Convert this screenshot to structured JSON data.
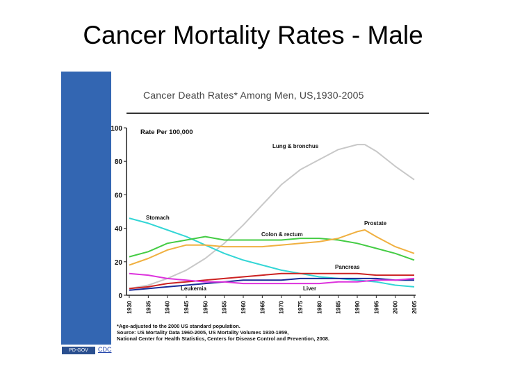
{
  "slide": {
    "title": "Cancer Mortality Rates - Male"
  },
  "footnote": {
    "lines": [
      "*Age-adjusted to the 2000 US standard population.",
      "Source: US Mortality Data 1960-2005, US Mortality Volumes 1930-1959,",
      "National Center for Health Statistics, Centers for Disease Control and Prevention, 2008."
    ]
  },
  "badge": {
    "label": "PD-GOV"
  },
  "credit": {
    "label": "CDC"
  },
  "chart_data": {
    "type": "line",
    "title": "Cancer Death Rates* Among Men, US,1930-2005",
    "ylabel": "Rate Per 100,000",
    "xlabel": "",
    "ylim": [
      0,
      100
    ],
    "yticks": [
      0,
      20,
      40,
      60,
      80,
      100
    ],
    "xlim": [
      1930,
      2005
    ],
    "xticks": [
      "1930",
      "1935",
      "1940",
      "1945",
      "1950",
      "1955",
      "1960",
      "1965",
      "1970",
      "1975",
      "1980",
      "1985",
      "1990",
      "1995",
      "2000",
      "2005"
    ],
    "grid": false,
    "legend": "inline labels",
    "series": [
      {
        "name": "Lung & bronchus",
        "color": "#c8c8c8",
        "points": [
          [
            1930,
            4
          ],
          [
            1935,
            6
          ],
          [
            1940,
            10
          ],
          [
            1945,
            15
          ],
          [
            1950,
            22
          ],
          [
            1955,
            31
          ],
          [
            1960,
            42
          ],
          [
            1965,
            54
          ],
          [
            1970,
            66
          ],
          [
            1975,
            75
          ],
          [
            1980,
            81
          ],
          [
            1985,
            87
          ],
          [
            1990,
            90
          ],
          [
            1992,
            90
          ],
          [
            1995,
            86
          ],
          [
            2000,
            77
          ],
          [
            2005,
            69
          ]
        ]
      },
      {
        "name": "Stomach",
        "color": "#33d6d6",
        "points": [
          [
            1930,
            46
          ],
          [
            1935,
            43
          ],
          [
            1940,
            39
          ],
          [
            1945,
            35
          ],
          [
            1950,
            30
          ],
          [
            1955,
            25
          ],
          [
            1960,
            21
          ],
          [
            1965,
            18
          ],
          [
            1970,
            15
          ],
          [
            1975,
            13
          ],
          [
            1980,
            11
          ],
          [
            1985,
            10
          ],
          [
            1990,
            9
          ],
          [
            1995,
            8
          ],
          [
            2000,
            6
          ],
          [
            2005,
            5
          ]
        ]
      },
      {
        "name": "Colon & rectum",
        "color": "#44cc44",
        "points": [
          [
            1930,
            23
          ],
          [
            1935,
            26
          ],
          [
            1940,
            31
          ],
          [
            1945,
            33
          ],
          [
            1950,
            35
          ],
          [
            1955,
            33
          ],
          [
            1960,
            33
          ],
          [
            1965,
            33
          ],
          [
            1970,
            33
          ],
          [
            1975,
            34
          ],
          [
            1980,
            34
          ],
          [
            1985,
            33
          ],
          [
            1990,
            31
          ],
          [
            1995,
            28
          ],
          [
            2000,
            25
          ],
          [
            2005,
            21
          ]
        ]
      },
      {
        "name": "Prostate",
        "color": "#f0b040",
        "points": [
          [
            1930,
            18
          ],
          [
            1935,
            22
          ],
          [
            1940,
            27
          ],
          [
            1945,
            30
          ],
          [
            1950,
            30
          ],
          [
            1955,
            29
          ],
          [
            1960,
            29
          ],
          [
            1965,
            29
          ],
          [
            1970,
            30
          ],
          [
            1975,
            31
          ],
          [
            1980,
            32
          ],
          [
            1985,
            34
          ],
          [
            1990,
            38
          ],
          [
            1992,
            39
          ],
          [
            1995,
            35
          ],
          [
            2000,
            29
          ],
          [
            2005,
            25
          ]
        ]
      },
      {
        "name": "Pancreas",
        "color": "#cc2222",
        "points": [
          [
            1930,
            4
          ],
          [
            1935,
            5
          ],
          [
            1940,
            7
          ],
          [
            1945,
            8
          ],
          [
            1950,
            9
          ],
          [
            1955,
            10
          ],
          [
            1960,
            11
          ],
          [
            1965,
            12
          ],
          [
            1970,
            13
          ],
          [
            1975,
            13
          ],
          [
            1980,
            13
          ],
          [
            1985,
            13
          ],
          [
            1990,
            13
          ],
          [
            1995,
            12
          ],
          [
            2000,
            12
          ],
          [
            2005,
            12
          ]
        ]
      },
      {
        "name": "Leukemia",
        "color": "#1a2a99",
        "points": [
          [
            1930,
            3
          ],
          [
            1935,
            4
          ],
          [
            1940,
            5
          ],
          [
            1945,
            6
          ],
          [
            1950,
            7
          ],
          [
            1955,
            8
          ],
          [
            1960,
            9
          ],
          [
            1965,
            9
          ],
          [
            1970,
            9
          ],
          [
            1975,
            10
          ],
          [
            1980,
            10
          ],
          [
            1985,
            10
          ],
          [
            1990,
            10
          ],
          [
            1995,
            10
          ],
          [
            2000,
            9
          ],
          [
            2005,
            9
          ]
        ]
      },
      {
        "name": "Liver",
        "color": "#dd33dd",
        "points": [
          [
            1930,
            13
          ],
          [
            1935,
            12
          ],
          [
            1940,
            10
          ],
          [
            1945,
            9
          ],
          [
            1950,
            8
          ],
          [
            1955,
            8
          ],
          [
            1960,
            7
          ],
          [
            1965,
            7
          ],
          [
            1970,
            7
          ],
          [
            1975,
            7
          ],
          [
            1980,
            7
          ],
          [
            1985,
            8
          ],
          [
            1990,
            8
          ],
          [
            1995,
            9
          ],
          [
            2000,
            9
          ],
          [
            2005,
            10
          ]
        ]
      }
    ]
  }
}
